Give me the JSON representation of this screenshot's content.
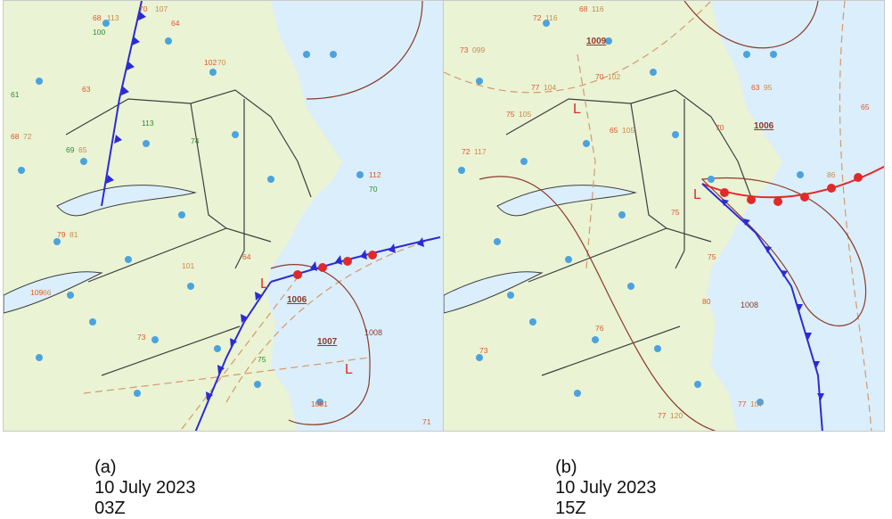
{
  "colors": {
    "land": "#eaf3d4",
    "ocean": "#dbeefb",
    "border": "#3f3f3f",
    "temperature": "#e0562a",
    "dewpoint": "#2e8b2e",
    "pressure": "#c98a4a",
    "station": "#4aa3df",
    "cold_front": "#2b2bd4",
    "warm_front": "#e02a2a",
    "trough": "#d49a6a",
    "isobar": "#8b3a2a"
  },
  "panels": [
    {
      "id": "a",
      "caption": {
        "label": "(a)",
        "date": "10 July 2023",
        "time": "03Z"
      },
      "lows": [
        {
          "text": "1006"
        },
        {
          "text": "1007"
        }
      ],
      "isobar_labels": [
        "1008"
      ],
      "low_symbol": "L",
      "sample_obs": [
        "70",
        "107",
        "68",
        "113",
        "63",
        "100",
        "61",
        "64",
        "68",
        "72",
        "102",
        "70",
        "113",
        "69",
        "65",
        "64",
        "101",
        "75",
        "1081",
        "71",
        "79",
        "81",
        "73",
        "109",
        "66",
        "74",
        "112",
        "70",
        "65",
        "98"
      ]
    },
    {
      "id": "b",
      "caption": {
        "label": "(b)",
        "date": "10 July 2023",
        "time": "15Z"
      },
      "lows": [
        {
          "text": "1009"
        },
        {
          "text": "1006"
        }
      ],
      "isobar_labels": [
        "1008"
      ],
      "low_symbol": "L",
      "sample_obs": [
        "68",
        "116",
        "72",
        "116",
        "73",
        "099",
        "70",
        "102",
        "77",
        "104",
        "75",
        "105",
        "72",
        "117",
        "65",
        "105",
        "63",
        "95",
        "70",
        "75",
        "77",
        "107",
        "77",
        "120",
        "76",
        "73",
        "75",
        "80",
        "86",
        "65"
      ]
    }
  ]
}
